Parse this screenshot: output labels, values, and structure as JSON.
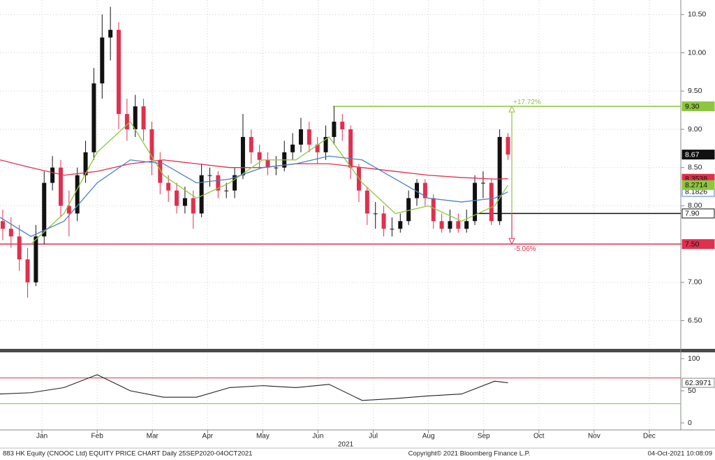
{
  "chart_data": [
    {
      "type": "candlestick",
      "xlim": [
        0.24,
        12.57
      ],
      "xticks": [
        {
          "value": 1,
          "label": "Jan"
        },
        {
          "value": 2,
          "label": "Feb"
        },
        {
          "value": 3,
          "label": "Mar"
        },
        {
          "value": 4,
          "label": "Apr"
        },
        {
          "value": 5,
          "label": "May"
        },
        {
          "value": 6,
          "label": "Jun"
        },
        {
          "value": 7,
          "label": "Jul"
        },
        {
          "value": 8,
          "label": "Aug"
        },
        {
          "value": 9,
          "label": "Sep"
        },
        {
          "value": 10,
          "label": "Oct"
        },
        {
          "value": 11,
          "label": "Nov"
        },
        {
          "value": 12,
          "label": "Dec"
        }
      ],
      "x_group_label": "2021",
      "ylim": [
        6.14,
        10.69
      ],
      "yticks": [
        {
          "value": 6.5,
          "label": "6.50"
        },
        {
          "value": 7,
          "label": "7.00"
        },
        {
          "value": 7.5,
          "label": "7.50"
        },
        {
          "value": 8,
          "label": "8.00"
        },
        {
          "value": 8.5,
          "label": "8.50"
        },
        {
          "value": 9,
          "label": "9.00"
        },
        {
          "value": 9.5,
          "label": "9.50"
        },
        {
          "value": 10,
          "label": "10.00"
        },
        {
          "value": 10.5,
          "label": "10.50"
        }
      ],
      "grid": true,
      "candles": {
        "x": [
          0.29,
          0.44,
          0.59,
          0.74,
          0.89,
          1.04,
          1.19,
          1.34,
          1.49,
          1.64,
          1.79,
          1.94,
          2.09,
          2.24,
          2.39,
          2.54,
          2.69,
          2.84,
          2.99,
          3.14,
          3.29,
          3.44,
          3.59,
          3.74,
          3.89,
          4.04,
          4.19,
          4.34,
          4.49,
          4.64,
          4.79,
          4.94,
          5.09,
          5.24,
          5.39,
          5.54,
          5.69,
          5.84,
          5.99,
          6.14,
          6.29,
          6.44,
          6.59,
          6.74,
          6.89,
          7.04,
          7.19,
          7.34,
          7.49,
          7.64,
          7.79,
          7.94,
          8.09,
          8.24,
          8.39,
          8.54,
          8.69,
          8.84,
          8.99,
          9.14,
          9.29,
          9.44
        ],
        "open": [
          7.8,
          7.7,
          7.6,
          7.3,
          7.0,
          7.6,
          8.3,
          8.5,
          8.0,
          7.9,
          8.4,
          8.7,
          9.6,
          10.2,
          10.3,
          9.2,
          9.0,
          9.3,
          9.0,
          8.6,
          8.3,
          8.2,
          8.0,
          8.1,
          7.9,
          8.4,
          8.4,
          8.2,
          8.2,
          8.4,
          8.9,
          8.7,
          8.6,
          8.5,
          8.5,
          8.7,
          8.8,
          9.0,
          8.8,
          8.7,
          8.9,
          9.1,
          9.0,
          8.5,
          8.2,
          7.9,
          7.9,
          7.7,
          7.7,
          7.8,
          8.1,
          8.3,
          8.1,
          7.8,
          7.7,
          7.8,
          7.7,
          7.8,
          8.3,
          8.3,
          7.8,
          8.9
        ],
        "high": [
          7.95,
          7.85,
          7.75,
          7.45,
          7.75,
          8.45,
          8.65,
          8.6,
          8.2,
          8.5,
          8.85,
          9.8,
          10.5,
          10.6,
          10.4,
          9.4,
          9.45,
          9.4,
          9.1,
          8.7,
          8.4,
          8.3,
          8.25,
          8.2,
          8.55,
          8.5,
          8.45,
          8.3,
          8.5,
          9.2,
          9.0,
          8.8,
          8.7,
          8.65,
          8.85,
          8.95,
          9.15,
          9.1,
          8.9,
          9.05,
          9.3,
          9.2,
          9.05,
          8.55,
          8.25,
          8.05,
          8.0,
          7.85,
          7.9,
          8.2,
          8.35,
          8.35,
          8.15,
          7.9,
          7.95,
          7.9,
          7.95,
          8.4,
          8.45,
          8.35,
          9.0,
          8.95
        ],
        "low": [
          7.55,
          7.45,
          7.15,
          6.8,
          6.95,
          7.5,
          8.2,
          7.85,
          7.6,
          7.8,
          8.3,
          8.6,
          9.4,
          9.9,
          9.0,
          8.85,
          8.9,
          8.85,
          8.4,
          8.15,
          8.05,
          7.9,
          7.9,
          7.7,
          7.85,
          8.25,
          8.1,
          8.1,
          8.1,
          8.35,
          8.55,
          8.5,
          8.4,
          8.4,
          8.45,
          8.6,
          8.7,
          8.7,
          8.55,
          8.6,
          8.8,
          8.85,
          8.35,
          8.05,
          7.75,
          7.7,
          7.6,
          7.6,
          7.65,
          7.75,
          8.0,
          8.0,
          7.7,
          7.65,
          7.65,
          7.65,
          7.65,
          7.75,
          8.1,
          7.75,
          7.75,
          8.6
        ],
        "close": [
          7.7,
          7.6,
          7.3,
          7.0,
          7.6,
          8.3,
          8.5,
          8.0,
          7.9,
          8.4,
          8.7,
          9.6,
          10.2,
          10.3,
          9.2,
          9.0,
          9.3,
          9.0,
          8.6,
          8.3,
          8.2,
          8.0,
          8.1,
          7.9,
          8.4,
          8.4,
          8.2,
          8.2,
          8.4,
          8.9,
          8.7,
          8.6,
          8.5,
          8.5,
          8.7,
          8.8,
          9.0,
          8.8,
          8.7,
          8.9,
          9.1,
          9.0,
          8.5,
          8.2,
          7.9,
          7.9,
          7.7,
          7.7,
          7.8,
          8.1,
          8.3,
          8.1,
          7.8,
          7.7,
          7.8,
          7.7,
          7.8,
          8.3,
          8.3,
          7.8,
          8.9,
          8.67
        ],
        "up_color": "#111111",
        "down_color": "#e0304e"
      },
      "series": [
        {
          "color": "#e0304e",
          "x": [
            0.24,
            0.8,
            1.4,
            2.0,
            2.6,
            3.2,
            3.8,
            4.4,
            5.0,
            5.6,
            6.2,
            6.8,
            7.4,
            8.0,
            8.6,
            9.2,
            9.44
          ],
          "values": [
            8.6,
            8.5,
            8.4,
            8.45,
            8.55,
            8.6,
            8.55,
            8.5,
            8.5,
            8.55,
            8.55,
            8.5,
            8.45,
            8.4,
            8.37,
            8.35,
            8.3538
          ]
        },
        {
          "color": "#8dc63f",
          "x": [
            0.24,
            0.8,
            1.4,
            2.0,
            2.6,
            3.2,
            3.8,
            4.4,
            5.0,
            5.6,
            6.2,
            6.8,
            7.4,
            8.0,
            8.6,
            9.2,
            9.44
          ],
          "values": [
            null,
            7.5,
            7.9,
            8.7,
            9.1,
            8.4,
            8.1,
            8.3,
            8.6,
            8.6,
            8.9,
            8.3,
            7.9,
            8.0,
            7.8,
            8.0,
            8.2714
          ]
        },
        {
          "color": "#4f81bd",
          "x": [
            0.24,
            0.8,
            1.4,
            2.0,
            2.6,
            3.2,
            3.8,
            4.4,
            5.0,
            5.6,
            6.2,
            6.8,
            7.4,
            8.0,
            8.6,
            9.2,
            9.44
          ],
          "values": [
            7.85,
            7.6,
            7.8,
            8.3,
            8.6,
            8.55,
            8.3,
            8.35,
            8.5,
            8.55,
            8.65,
            8.6,
            8.35,
            8.1,
            8.05,
            8.1,
            8.1826
          ]
        }
      ],
      "levels": [
        {
          "value": 9.3,
          "label": "9.30",
          "color": "#8dc63f",
          "x_start": 6.27
        },
        {
          "value": 7.9,
          "label": "7.90",
          "color": "#111111",
          "x_start": 8.84
        },
        {
          "value": 7.5,
          "label": "7.50",
          "color": "#e0304e",
          "x_start": 0.24
        }
      ],
      "measure": {
        "x": 9.51,
        "up_label": "+17.72%",
        "down_label": "-5.06%"
      }
    },
    {
      "type": "line",
      "x": [
        0.24,
        0.8,
        1.4,
        2.0,
        2.6,
        3.2,
        3.8,
        4.4,
        5.0,
        5.6,
        6.2,
        6.8,
        7.4,
        8.0,
        8.6,
        9.2,
        9.44
      ],
      "series": [
        {
          "color": "#222222",
          "values": [
            45,
            47,
            55,
            75,
            50,
            40,
            40,
            55,
            58,
            55,
            60,
            35,
            38,
            42,
            45,
            65,
            62.3971
          ]
        }
      ],
      "ylim": [
        -10.9,
        108.7
      ],
      "yticks": [
        0,
        50,
        100
      ],
      "levels": [
        {
          "value": 70,
          "color": "#e0304e"
        },
        {
          "value": 30,
          "color": "#5ccf3a"
        }
      ]
    }
  ],
  "footer": {
    "left": "883 HK Equity (CNOOC Ltd) EQUITY PRICE CHART  Daily 25SEP2020-04OCT2021",
    "center": "Copyright© 2021 Bloomberg Finance L.P.",
    "right": "04-Oct-2021 10:08:09"
  }
}
